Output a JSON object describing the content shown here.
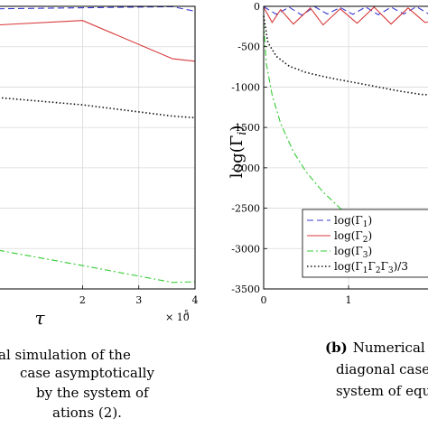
{
  "chart_data": [
    {
      "type": "line",
      "xlabel": "τ",
      "ylabel": "",
      "x_exponent_label": "× 10",
      "x_exponent_power": "5",
      "x_ticks": [
        "2",
        "3",
        "4"
      ],
      "xlim": [
        0.5,
        4.0
      ],
      "ylim": [
        -3500,
        0
      ],
      "grid": true,
      "caption_lines": [
        "al simulation of the",
        "case asymptotically",
        "by the system of",
        "ations (2)."
      ],
      "series": [
        {
          "style": "blue-dashed",
          "x": [
            0.5,
            3.6,
            4.0
          ],
          "y": [
            -30,
            -5,
            -60
          ]
        },
        {
          "style": "red-solid",
          "x": [
            0.5,
            2.0,
            3.6,
            4.0
          ],
          "y": [
            -230,
            -175,
            -650,
            -680
          ]
        },
        {
          "style": "black-dotted",
          "x": [
            0.5,
            2.0,
            3.6,
            4.0
          ],
          "y": [
            -1130,
            -1220,
            -1360,
            -1380
          ]
        },
        {
          "style": "green-dashdot",
          "x": [
            0.5,
            2.0,
            3.6,
            4.0
          ],
          "y": [
            -3020,
            -3210,
            -3420,
            -3410
          ]
        }
      ]
    },
    {
      "type": "line",
      "ylabel_prefix": "log(Γ",
      "ylabel_sub": "i",
      "ylabel_suffix": ")",
      "x_ticks": [
        "0",
        "1"
      ],
      "y_ticks": [
        "0",
        "-500",
        "-1000",
        "-1500",
        "-2000",
        "-2500",
        "-3000",
        "-3500"
      ],
      "xlim": [
        0,
        2.02
      ],
      "ylim": [
        -3500,
        0
      ],
      "grid": true,
      "caption_label": "(b)",
      "caption_lines": [
        "Numerical",
        "diagonal case",
        "system of equ"
      ],
      "legend": {
        "placement": "bottom-left",
        "entries": [
          {
            "prefix": "log(Γ",
            "sub": "1",
            "suffix": ")",
            "style": "blue-dashed"
          },
          {
            "prefix": "log(Γ",
            "sub": "2",
            "suffix": ")",
            "style": "red-solid"
          },
          {
            "prefix": "log(Γ",
            "sub": "3",
            "suffix": ")",
            "style": "green-dashdot"
          },
          {
            "prefix": "log(Γ",
            "sub": "1",
            "mid1": "Γ",
            "sub2": "2",
            "mid2": "Γ",
            "sub3": "3",
            "suffix": ")/3",
            "style": "black-dotted"
          }
        ]
      },
      "series": [
        {
          "style": "blue-dashed",
          "x": [
            0,
            0.15,
            0.3,
            0.45,
            0.6,
            0.75,
            0.9,
            1.05,
            1.2,
            1.35,
            1.5,
            1.65,
            1.8,
            1.95,
            2.02
          ],
          "y": [
            -5,
            -100,
            -10,
            -110,
            -5,
            -95,
            -15,
            -100,
            -8,
            -105,
            -10,
            -95,
            -5,
            -100,
            -60
          ]
        },
        {
          "style": "red-solid",
          "x": [
            0,
            0.1,
            0.2,
            0.35,
            0.55,
            0.7,
            0.9,
            1.1,
            1.3,
            1.5,
            1.7,
            1.9,
            2.02
          ],
          "y": [
            -10,
            -200,
            -40,
            -220,
            -20,
            -230,
            -30,
            -210,
            -10,
            -220,
            -20,
            -200,
            -180
          ]
        },
        {
          "style": "black-dotted",
          "x": [
            0,
            0.05,
            0.15,
            0.3,
            0.5,
            0.75,
            1.0,
            1.3,
            1.6,
            1.85,
            2.02
          ],
          "y": [
            -120,
            -450,
            -620,
            -740,
            -820,
            -880,
            -930,
            -990,
            -1050,
            -1090,
            -1100
          ]
        },
        {
          "style": "green-dashdot",
          "x": [
            0,
            0.03,
            0.1,
            0.2,
            0.35,
            0.5,
            0.7,
            0.9,
            1.05,
            1.2,
            1.4
          ],
          "y": [
            -200,
            -700,
            -1100,
            -1450,
            -1800,
            -2050,
            -2300,
            -2500,
            -2620,
            -2740,
            -2870
          ]
        }
      ]
    }
  ]
}
